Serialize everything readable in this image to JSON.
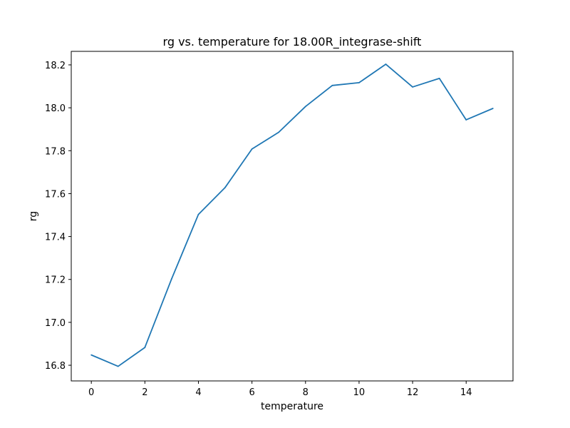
{
  "chart_data": {
    "type": "line",
    "title": "rg vs. temperature for 18.00R_integrase-shift",
    "xlabel": "temperature",
    "ylabel": "rg",
    "xlim": [
      -0.75,
      15.75
    ],
    "ylim": [
      16.727,
      18.263
    ],
    "x_ticks": [
      0,
      2,
      4,
      6,
      8,
      10,
      12,
      14
    ],
    "y_ticks": [
      16.8,
      17.0,
      17.2,
      17.4,
      17.6,
      17.8,
      18.0,
      18.2
    ],
    "y_tick_labels": [
      "16.8",
      "17.0",
      "17.2",
      "17.4",
      "17.6",
      "17.8",
      "18.0",
      "18.2"
    ],
    "grid": false,
    "legend": "none",
    "series": [
      {
        "color": "#1f77b4",
        "x": [
          0,
          1,
          2,
          3,
          4,
          5,
          6,
          7,
          8,
          9,
          10,
          11,
          12,
          13,
          14,
          15
        ],
        "values": [
          16.848,
          16.795,
          16.883,
          17.203,
          17.503,
          17.629,
          17.808,
          17.886,
          18.006,
          18.104,
          18.117,
          18.203,
          18.097,
          18.137,
          17.944,
          17.997
        ]
      }
    ]
  }
}
